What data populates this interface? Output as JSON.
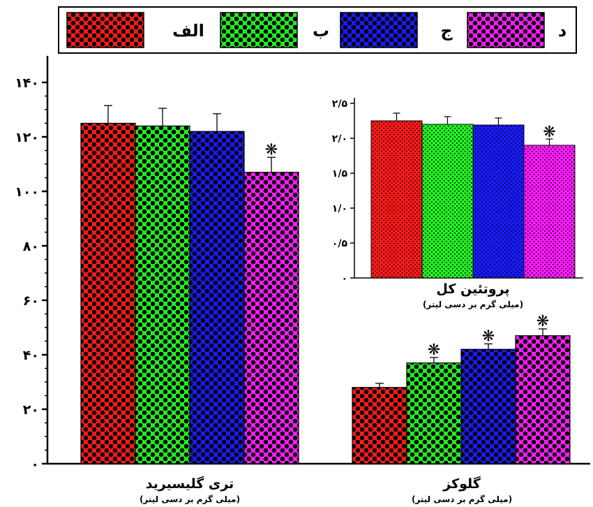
{
  "legend": [
    {
      "label": "الف",
      "color": "#ff1a1a",
      "dot": "#000000"
    },
    {
      "label": "ب",
      "color": "#22ee22",
      "dot": "#000000"
    },
    {
      "label": "ج",
      "color": "#1a1aff",
      "dot": "#000000"
    },
    {
      "label": "د",
      "color": "#ff1aff",
      "dot": "#000000"
    }
  ],
  "chart_data": [
    {
      "type": "bar",
      "panel": "main",
      "ylim": [
        0,
        140
      ],
      "yticks": [
        "۰",
        "۲۰",
        "۴۰",
        "۶۰",
        "۸۰",
        "۱۰۰",
        "۱۲۰",
        "۱۴۰"
      ],
      "groups": [
        {
          "label": "تری گلیسیرید",
          "unit": "(میلی گرم بر دسی لیتر)",
          "values": [
            125,
            124,
            122,
            107
          ],
          "errors": [
            6.5,
            6.5,
            6.5,
            5.5
          ],
          "significant": [
            false,
            false,
            false,
            true
          ]
        },
        {
          "label": "گلوکز",
          "unit": "(میلی گرم بر دسی لیتر)",
          "values": [
            28,
            37,
            42,
            47
          ],
          "errors": [
            1.5,
            2,
            2,
            2.5
          ],
          "significant": [
            false,
            true,
            true,
            true
          ]
        }
      ]
    },
    {
      "type": "bar",
      "panel": "inset",
      "ylim": [
        0,
        2.5
      ],
      "yticks": [
        "۰",
        "۰/۵",
        "۱/۰",
        "۱/۵",
        "۲/۰",
        "۲/۵"
      ],
      "groups": [
        {
          "label": "پروتئین کل",
          "unit": "(میلی گرم بر دسی لیتر)",
          "values": [
            2.25,
            2.2,
            2.19,
            1.9
          ],
          "errors": [
            0.11,
            0.11,
            0.1,
            0.09
          ],
          "significant": [
            false,
            false,
            false,
            true
          ]
        }
      ]
    }
  ],
  "significance_mark": "❋"
}
